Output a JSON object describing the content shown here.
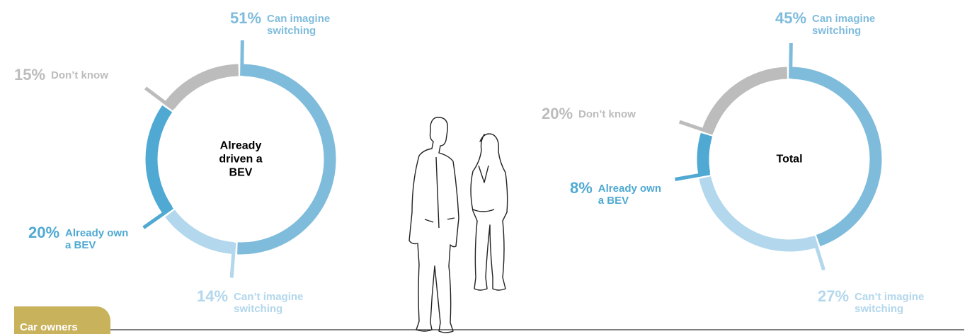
{
  "tab": "Car owners",
  "chart_data": [
    {
      "type": "donut",
      "center_label": "Already driven a BEV",
      "categories": [
        "Can imagine switching",
        "Can’t imagine switching",
        "Already own a BEV",
        "Don’t know"
      ],
      "values": [
        51,
        14,
        20,
        15
      ],
      "value_labels": [
        "51%",
        "14%",
        "20%",
        "15%"
      ],
      "colors": [
        "#7fbcdc",
        "#b3d7ec",
        "#4fa9d2",
        "#bcbcbc"
      ]
    },
    {
      "type": "donut",
      "center_label": "Total",
      "categories": [
        "Can imagine switching",
        "Can’t imagine switching",
        "Already own a BEV",
        "Don’t know"
      ],
      "values": [
        45,
        27,
        8,
        20
      ],
      "value_labels": [
        "45%",
        "27%",
        "8%",
        "20%"
      ],
      "colors": [
        "#7fbcdc",
        "#b3d7ec",
        "#4fa9d2",
        "#bcbcbc"
      ]
    }
  ]
}
